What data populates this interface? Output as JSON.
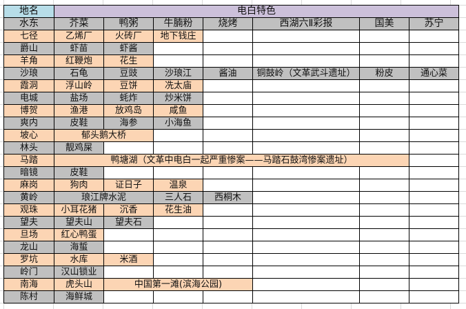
{
  "colors": {
    "gray": "#c0c0c0",
    "orange": "#fcd5b4",
    "blue": "#b7dde8",
    "purple": "#ccc0da"
  },
  "header": {
    "place_label": "地名",
    "group_title": "电白特色"
  },
  "columns": [
    "水东",
    "芥菜",
    "鸭粥",
    "牛腩粉",
    "烧烤",
    "西湖六Ⅱ彩报",
    "国美",
    "苏宁"
  ],
  "rows": [
    {
      "name": "七径",
      "color": "orange",
      "cells": [
        {
          "text": "乙烯厂"
        },
        {
          "text": "火砖厂"
        },
        {
          "text": "地下钱庄"
        }
      ]
    },
    {
      "name": "爵山",
      "color": "gray",
      "cells": [
        {
          "text": "虾苗"
        },
        {
          "text": "虾酱"
        }
      ]
    },
    {
      "name": "羊角",
      "color": "orange",
      "cells": [
        {
          "text": "红鞭炮"
        },
        {
          "text": "花生"
        }
      ]
    },
    {
      "name": "沙琅",
      "color": "gray",
      "cells": [
        {
          "text": "石龟"
        },
        {
          "text": "豆豉"
        },
        {
          "text": "沙琅江"
        },
        {
          "text": "酱油"
        },
        {
          "text": "铜鼓岭（文革武斗遗址）"
        },
        {
          "text": "粉皮"
        },
        {
          "text": "通心菜"
        }
      ]
    },
    {
      "name": "霞洞",
      "color": "orange",
      "cells": [
        {
          "text": "浮山岭"
        },
        {
          "text": "豆饼"
        },
        {
          "text": "冼太庙"
        }
      ]
    },
    {
      "name": "电城",
      "color": "gray",
      "cells": [
        {
          "text": "盐场"
        },
        {
          "text": "蚝炸"
        },
        {
          "text": "炒米饼"
        }
      ]
    },
    {
      "name": "博贺",
      "color": "orange",
      "cells": [
        {
          "text": "渔港"
        },
        {
          "text": "放鸡岛"
        },
        {
          "text": "咸鱼"
        }
      ]
    },
    {
      "name": "爽内",
      "color": "gray",
      "cells": [
        {
          "text": "皮鞋"
        },
        {
          "text": "海参"
        },
        {
          "text": "小海鱼"
        }
      ]
    },
    {
      "name": "坡心",
      "color": "orange",
      "cells": [
        {
          "text": "郁头鹅大桥",
          "span": 2
        }
      ]
    },
    {
      "name": "林头",
      "color": "gray",
      "cells": [
        {
          "text": "靓鸡屎"
        }
      ]
    },
    {
      "name": "马踏",
      "color": "orange",
      "cells": [
        {
          "text": "鸭塘湖（文革中电白一起严重惨案——马踏石鼓湾惨案遗址）",
          "span": 6
        }
      ]
    },
    {
      "name": "暗镜",
      "color": "gray",
      "cells": [
        {
          "text": "皮鞋"
        }
      ]
    },
    {
      "name": "麻岗",
      "color": "orange",
      "cells": [
        {
          "text": "狗肉"
        },
        {
          "text": "证日子"
        },
        {
          "text": "温泉"
        }
      ]
    },
    {
      "name": "黄岭",
      "color": "gray",
      "cells": [
        {
          "text": "琅江牌水泥",
          "span": 2
        },
        {
          "text": "三人石"
        },
        {
          "text": "西桐木"
        }
      ]
    },
    {
      "name": "观珠",
      "color": "orange",
      "cells": [
        {
          "text": "小耳花猪"
        },
        {
          "text": "沉香"
        },
        {
          "text": "花生油"
        }
      ]
    },
    {
      "name": "望夫",
      "color": "gray",
      "cells": [
        {
          "text": "望夫山"
        },
        {
          "text": "望夫石"
        }
      ]
    },
    {
      "name": "旦场",
      "color": "orange",
      "cells": [
        {
          "text": "红心鸭蛋"
        }
      ]
    },
    {
      "name": "龙山",
      "color": "gray",
      "cells": [
        {
          "text": "海蜇"
        }
      ]
    },
    {
      "name": "罗坑",
      "color": "orange",
      "cells": [
        {
          "text": "水库"
        },
        {
          "text": "米酒"
        }
      ]
    },
    {
      "name": "岭门",
      "color": "gray",
      "cells": [
        {
          "text": "汉山锁业"
        }
      ]
    },
    {
      "name": "南海",
      "color": "orange",
      "cells": [
        {
          "text": "虎头山"
        },
        {
          "text": "中国第一滩(滨海公园)",
          "span": 3
        }
      ]
    },
    {
      "name": "陈村",
      "color": "gray",
      "cells": [
        {
          "text": "海鲜城"
        }
      ]
    }
  ]
}
